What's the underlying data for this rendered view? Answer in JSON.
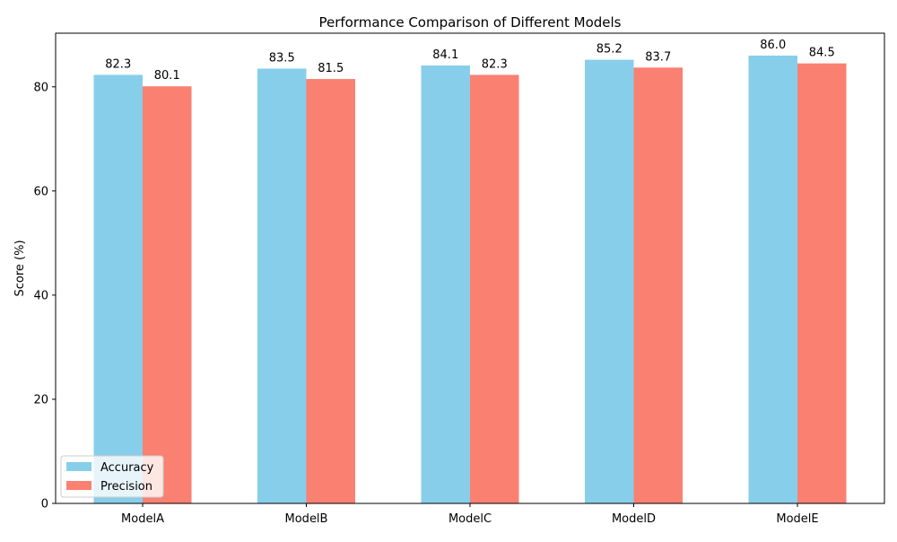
{
  "chart_data": {
    "type": "bar",
    "title": "Performance Comparison of Different Models",
    "xlabel": "",
    "ylabel": "Score (%)",
    "categories": [
      "ModelA",
      "ModelB",
      "ModelC",
      "ModelD",
      "ModelE"
    ],
    "series": [
      {
        "name": "Accuracy",
        "color": "#87ceeb",
        "values": [
          82.3,
          83.5,
          84.1,
          85.2,
          86.0
        ],
        "labels": [
          "82.3",
          "83.5",
          "84.1",
          "85.2",
          "86.0"
        ]
      },
      {
        "name": "Precision",
        "color": "#fa8072",
        "values": [
          80.1,
          81.5,
          82.3,
          83.7,
          84.5
        ],
        "labels": [
          "80.1",
          "81.5",
          "82.3",
          "83.7",
          "84.5"
        ]
      }
    ],
    "ylim": [
      0,
      90.3
    ],
    "yticks": [
      0,
      20,
      40,
      60,
      80
    ],
    "ytick_labels": [
      "0",
      "20",
      "40",
      "60",
      "80"
    ],
    "grid": false,
    "legend_position": "lower-left"
  }
}
